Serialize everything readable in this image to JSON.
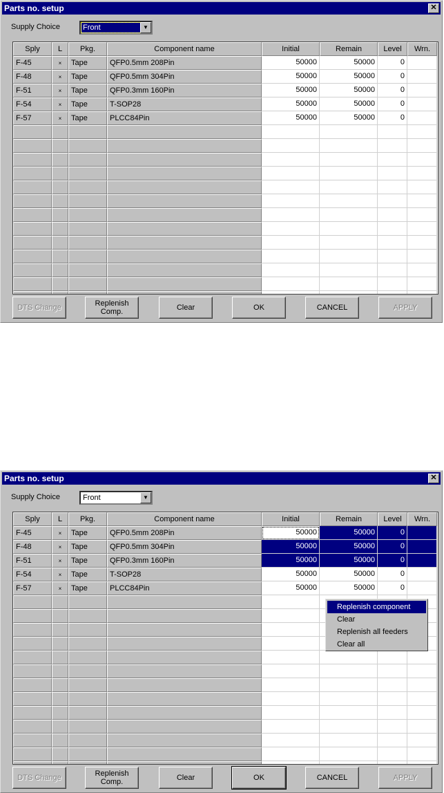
{
  "dialog": {
    "title": "Parts no. setup",
    "supply_label": "Supply Choice",
    "supply_value": "Front"
  },
  "columns": [
    "Sply",
    "L",
    "Pkg.",
    "Component name",
    "Initial",
    "Remain",
    "Level",
    "Wrn."
  ],
  "rows": [
    [
      "F-45",
      "×",
      "Tape",
      "QFP0.5mm 208Pin",
      "50000",
      "50000",
      "0",
      ""
    ],
    [
      "F-48",
      "×",
      "Tape",
      "QFP0.5mm 304Pin",
      "50000",
      "50000",
      "0",
      ""
    ],
    [
      "F-51",
      "×",
      "Tape",
      "QFP0.3mm 160Pin",
      "50000",
      "50000",
      "0",
      ""
    ],
    [
      "F-54",
      "×",
      "Tape",
      "T-SOP28",
      "50000",
      "50000",
      "0",
      ""
    ],
    [
      "F-57",
      "×",
      "Tape",
      "PLCC84Pin",
      "50000",
      "50000",
      "0",
      ""
    ]
  ],
  "buttons": {
    "dts": "DTS Change",
    "replenish": "Replenish Comp.",
    "clear": "Clear",
    "ok": "OK",
    "cancel": "CANCEL",
    "apply": "APPLY"
  },
  "context_menu": [
    "Replenish component",
    "Clear",
    "Replenish all feeders",
    "Clear all"
  ],
  "colors": {
    "title_bar": "#000080",
    "selection": "#000080",
    "face": "#c0c0c0"
  }
}
